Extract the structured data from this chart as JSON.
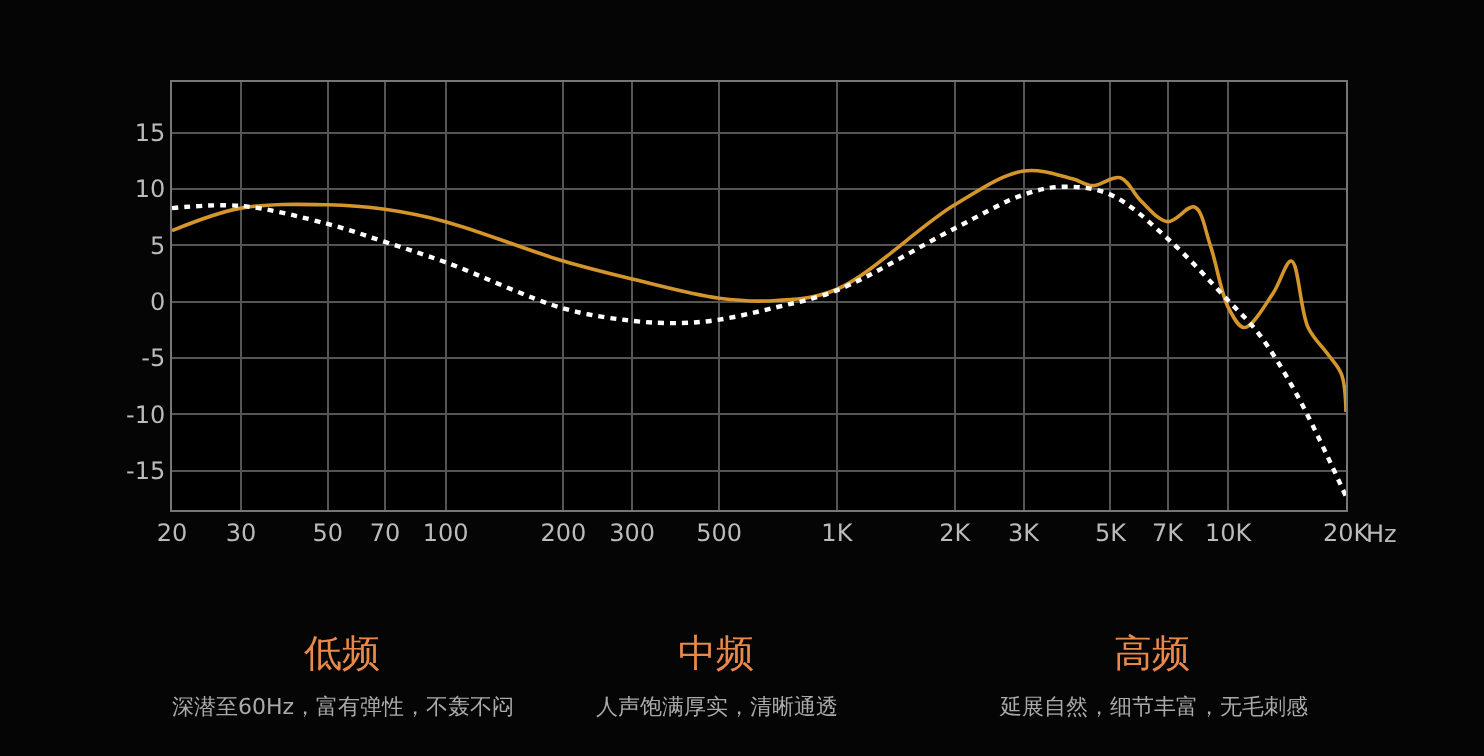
{
  "chart_data": {
    "type": "line",
    "log": "x",
    "grid": true,
    "marker": "none",
    "xlim": [
      20,
      20000
    ],
    "ylim": [
      -18.5,
      19.5
    ],
    "xticks": [
      20,
      30,
      50,
      70,
      100,
      200,
      300,
      500,
      {
        "value": 1000,
        "label": "1K"
      },
      {
        "value": 2000,
        "label": "2K"
      },
      {
        "value": 3000,
        "label": "3K"
      },
      {
        "value": 5000,
        "label": "5K"
      },
      {
        "value": 7000,
        "label": "7K"
      },
      {
        "value": 10000,
        "label": "10K"
      },
      {
        "value": 20000,
        "label": "20K"
      }
    ],
    "xlabel": "Hz",
    "yticks": [
      -15,
      -10,
      -5,
      0,
      5,
      10,
      15
    ],
    "series": [
      {
        "color": "#d4952a",
        "line_style": "solid",
        "x": [
          20,
          30,
          50,
          70,
          100,
          200,
          300,
          500,
          700,
          1000,
          2000,
          3000,
          4000,
          4500,
          5300,
          6000,
          7000,
          8200,
          9000,
          10000,
          11000,
          13000,
          14500,
          16000,
          18000,
          19500,
          20000
        ],
        "values": [
          6.3,
          8.3,
          8.6,
          8.2,
          7.1,
          3.6,
          2.0,
          0.3,
          0.1,
          1.1,
          8.6,
          11.6,
          10.9,
          10.3,
          11.0,
          8.9,
          7.1,
          8.4,
          5.0,
          -0.5,
          -2.3,
          0.7,
          3.6,
          -2.3,
          -4.7,
          -6.5,
          -9.8
        ]
      },
      {
        "color": "#ffffff",
        "line_style": "dotted",
        "x": [
          20,
          30,
          50,
          70,
          100,
          200,
          300,
          400,
          500,
          700,
          1000,
          2000,
          3000,
          3800,
          5000,
          7000,
          10000,
          12000,
          15000,
          20000
        ],
        "values": [
          8.3,
          8.5,
          6.9,
          5.3,
          3.5,
          -0.6,
          -1.7,
          -1.9,
          -1.6,
          -0.5,
          1.0,
          6.5,
          9.5,
          10.2,
          9.5,
          5.6,
          0.1,
          -2.9,
          -8.3,
          -17.3
        ]
      }
    ],
    "annotations": [
      "低频",
      "深潜至60Hz，富有弹性，不轰不闷",
      "中频",
      "人声饱满厚实，清晰通透",
      "高频",
      "延展自然，细节丰富，无毛刺感"
    ]
  }
}
